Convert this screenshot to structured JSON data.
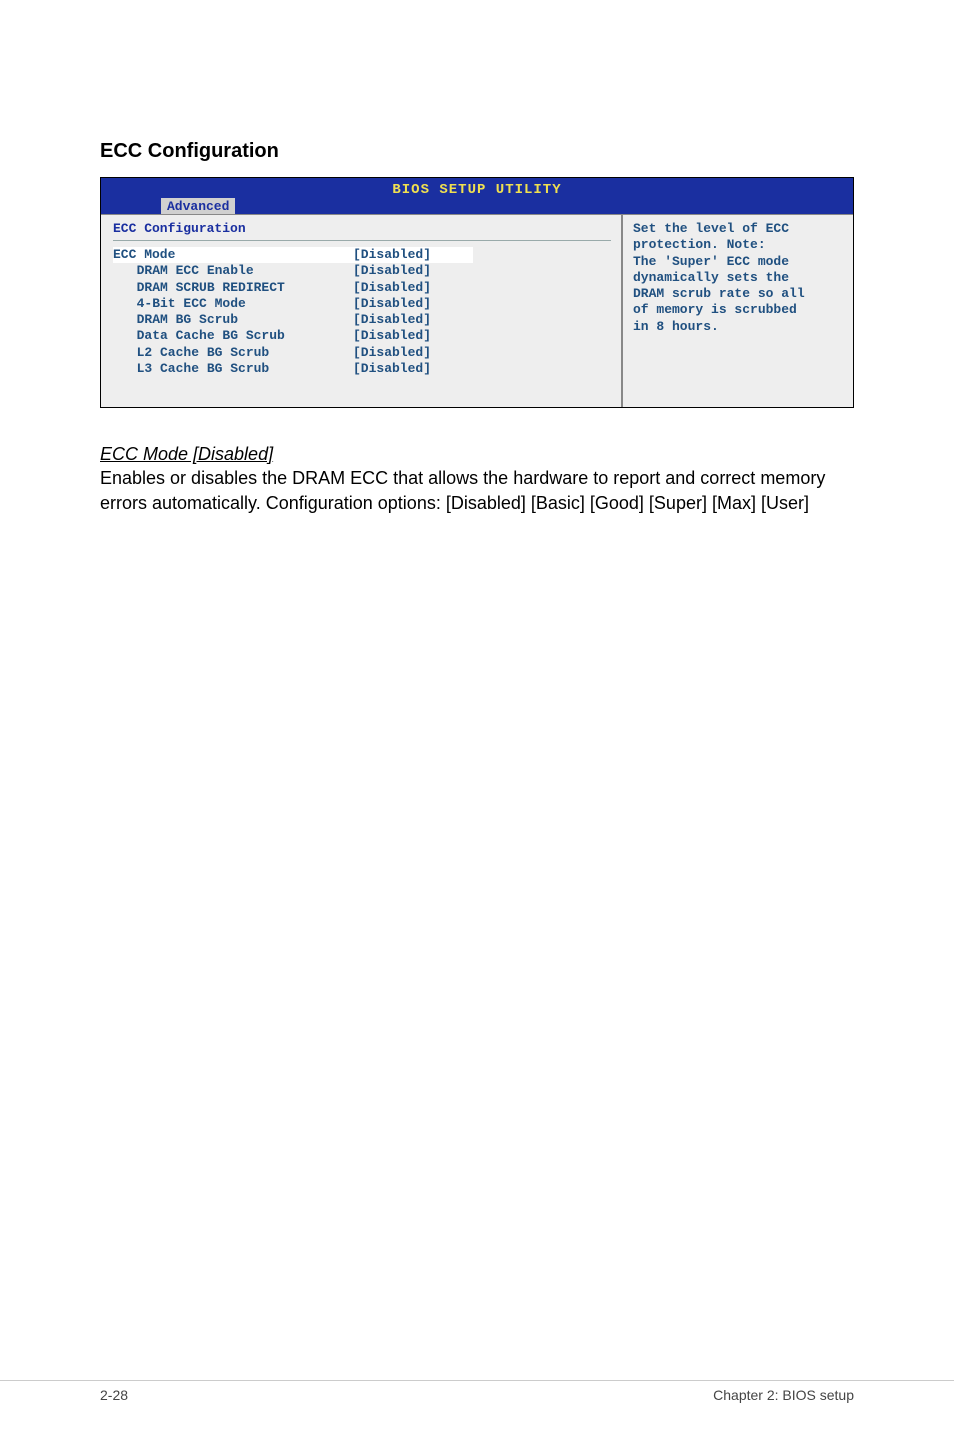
{
  "section_title": "ECC Configuration",
  "bios_header": "BIOS SETUP UTILITY",
  "tab_label": "Advanced",
  "config_title": "ECC Configuration",
  "options": [
    {
      "label": "ECC Mode",
      "value": "[Disabled]",
      "highlight": true,
      "indent": 0
    },
    {
      "label": "DRAM ECC Enable",
      "value": "[Disabled]",
      "highlight": false,
      "indent": 1
    },
    {
      "label": "DRAM SCRUB REDIRECT",
      "value": "[Disabled]",
      "highlight": false,
      "indent": 1
    },
    {
      "label": "4-Bit ECC Mode",
      "value": "[Disabled]",
      "highlight": false,
      "indent": 1
    },
    {
      "label": "DRAM BG Scrub",
      "value": "[Disabled]",
      "highlight": false,
      "indent": 1
    },
    {
      "label": "Data Cache BG Scrub",
      "value": "[Disabled]",
      "highlight": false,
      "indent": 1
    },
    {
      "label": "L2 Cache BG Scrub",
      "value": "[Disabled]",
      "highlight": false,
      "indent": 1
    },
    {
      "label": "L3 Cache BG Scrub",
      "value": "[Disabled]",
      "highlight": false,
      "indent": 1
    }
  ],
  "help_lines": [
    "Set the level of ECC",
    "protection. Note:",
    "The 'Super' ECC mode",
    "dynamically sets the",
    "DRAM scrub rate so all",
    "of memory is scrubbed",
    "in 8 hours."
  ],
  "body": {
    "em_heading": "ECC Mode [Disabled]",
    "para": "Enables or disables the DRAM ECC that allows the hardware to report and correct memory errors automatically. Configuration options: [Disabled] [Basic] [Good] [Super] [Max] [User]"
  },
  "footer_left": "2-28",
  "footer_right": "Chapter 2: BIOS setup",
  "colors": {
    "bios_blue": "#1a2fa0",
    "bios_yellow": "#f0e050",
    "panel_grey": "#eeeeee",
    "text_blue": "#205080",
    "highlight_bg": "#ffffff"
  },
  "fonts": {
    "heading_size_pt": 15,
    "mono_size_pt": 10,
    "body_size_pt": 13
  }
}
